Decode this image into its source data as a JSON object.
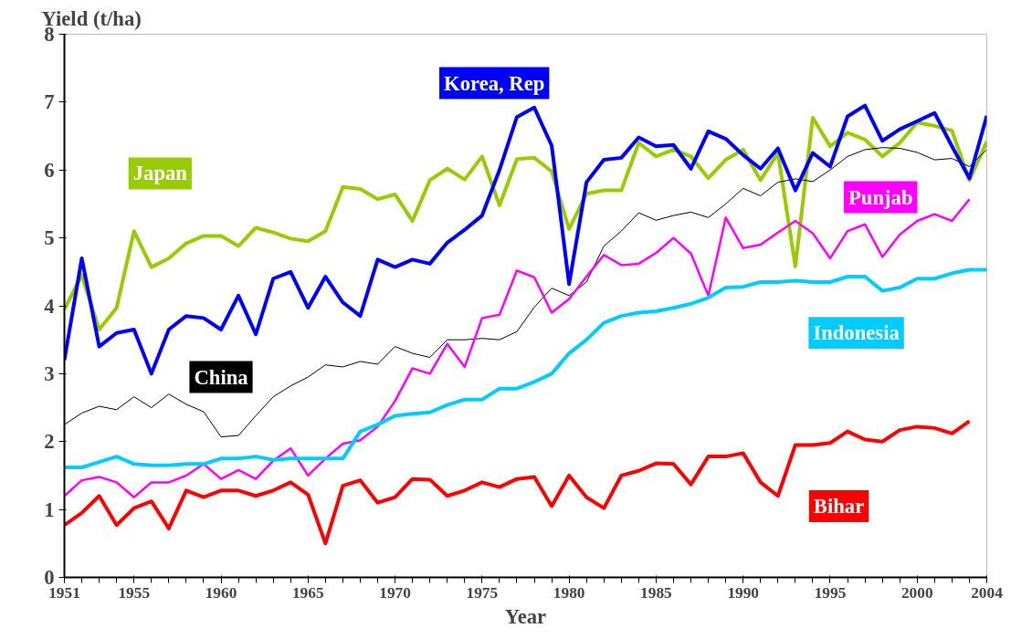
{
  "chart_data": {
    "type": "line",
    "xlabel": "Year",
    "ylabel": "Yield (t/ha)",
    "x": [
      1951,
      1952,
      1953,
      1954,
      1955,
      1956,
      1957,
      1958,
      1959,
      1960,
      1961,
      1962,
      1963,
      1964,
      1965,
      1966,
      1967,
      1968,
      1969,
      1970,
      1971,
      1972,
      1973,
      1974,
      1975,
      1976,
      1977,
      1978,
      1979,
      1980,
      1981,
      1982,
      1983,
      1984,
      1985,
      1986,
      1987,
      1988,
      1989,
      1990,
      1991,
      1992,
      1993,
      1994,
      1995,
      1996,
      1997,
      1998,
      1999,
      2000,
      2001,
      2002,
      2003,
      2004
    ],
    "series": [
      {
        "name": "Japan",
        "color": "#99cc00",
        "values": [
          3.95,
          4.45,
          3.65,
          3.97,
          5.1,
          4.57,
          4.7,
          4.92,
          5.03,
          5.03,
          4.88,
          5.15,
          5.08,
          4.99,
          4.95,
          5.1,
          5.75,
          5.72,
          5.57,
          5.64,
          5.25,
          5.85,
          6.02,
          5.86,
          6.2,
          5.48,
          6.16,
          6.18,
          5.98,
          5.13,
          5.65,
          5.7,
          5.7,
          6.4,
          6.2,
          6.3,
          6.2,
          5.88,
          6.15,
          6.3,
          5.85,
          6.25,
          4.58,
          6.77,
          6.35,
          6.55,
          6.45,
          6.2,
          6.4,
          6.7,
          6.65,
          6.58,
          5.85,
          6.42
        ]
      },
      {
        "name": "China",
        "color": "#000000",
        "values": [
          2.25,
          2.42,
          2.52,
          2.47,
          2.66,
          2.5,
          2.7,
          2.55,
          2.44,
          2.07,
          2.09,
          2.38,
          2.66,
          2.82,
          2.95,
          3.13,
          3.1,
          3.18,
          3.14,
          3.4,
          3.3,
          3.24,
          3.5,
          3.5,
          3.52,
          3.5,
          3.62,
          3.98,
          4.26,
          4.15,
          4.35,
          4.88,
          5.1,
          5.37,
          5.26,
          5.33,
          5.38,
          5.3,
          5.5,
          5.73,
          5.62,
          5.82,
          5.87,
          5.83,
          6.0,
          6.2,
          6.3,
          6.33,
          6.32,
          6.26,
          6.15,
          6.17,
          6.05,
          6.3
        ]
      },
      {
        "name": "Punjab",
        "color": "#ff00ff",
        "values": [
          1.2,
          1.43,
          1.48,
          1.4,
          1.18,
          1.4,
          1.4,
          1.5,
          1.67,
          1.45,
          1.58,
          1.45,
          1.72,
          1.9,
          1.5,
          1.75,
          1.97,
          2.02,
          2.22,
          2.6,
          3.08,
          3.0,
          3.44,
          3.1,
          3.82,
          3.87,
          4.52,
          4.42,
          3.9,
          4.1,
          4.43,
          4.75,
          4.6,
          4.62,
          4.78,
          5.0,
          4.77,
          4.15,
          5.3,
          4.85,
          4.9,
          5.08,
          5.25,
          5.07,
          4.7,
          5.1,
          5.2,
          4.72,
          5.05,
          5.25,
          5.35,
          5.25,
          5.57,
          null
        ]
      },
      {
        "name": "Indonesia",
        "color": "#00ccff",
        "values": [
          1.62,
          1.62,
          1.7,
          1.78,
          1.67,
          1.65,
          1.65,
          1.67,
          1.67,
          1.75,
          1.75,
          1.78,
          1.73,
          1.75,
          1.75,
          1.75,
          1.75,
          2.15,
          2.25,
          2.38,
          2.41,
          2.43,
          2.54,
          2.62,
          2.62,
          2.78,
          2.78,
          2.88,
          3.0,
          3.3,
          3.5,
          3.75,
          3.85,
          3.9,
          3.92,
          3.97,
          4.03,
          4.12,
          4.27,
          4.28,
          4.35,
          4.35,
          4.37,
          4.35,
          4.35,
          4.43,
          4.43,
          4.22,
          4.27,
          4.4,
          4.4,
          4.48,
          4.53,
          4.53
        ]
      },
      {
        "name": "Bihar",
        "color": "#ff0000",
        "values": [
          0.77,
          0.95,
          1.2,
          0.77,
          1.02,
          1.12,
          0.72,
          1.28,
          1.18,
          1.28,
          1.28,
          1.2,
          1.28,
          1.4,
          1.22,
          0.5,
          1.35,
          1.43,
          1.1,
          1.18,
          1.45,
          1.44,
          1.2,
          1.28,
          1.4,
          1.33,
          1.45,
          1.48,
          1.05,
          1.5,
          1.18,
          1.02,
          1.5,
          1.57,
          1.68,
          1.67,
          1.37,
          1.78,
          1.78,
          1.83,
          1.4,
          1.2,
          1.95,
          1.95,
          1.98,
          2.15,
          2.03,
          2.0,
          2.17,
          2.22,
          2.2,
          2.12,
          2.3,
          null
        ]
      },
      {
        "name": "Korea, Rep",
        "color": "#0000ff",
        "values": [
          3.2,
          4.7,
          3.4,
          3.6,
          3.65,
          3.0,
          3.65,
          3.85,
          3.82,
          3.65,
          4.15,
          3.58,
          4.4,
          4.5,
          3.97,
          4.43,
          4.05,
          3.85,
          4.68,
          4.57,
          4.68,
          4.62,
          4.93,
          5.12,
          5.33,
          6.0,
          6.78,
          6.92,
          6.36,
          4.32,
          5.82,
          6.15,
          6.18,
          6.48,
          6.35,
          6.37,
          6.02,
          6.57,
          6.46,
          6.22,
          6.02,
          6.32,
          5.7,
          6.25,
          6.05,
          6.79,
          6.95,
          6.43,
          6.6,
          6.72,
          6.84,
          6.35,
          5.88,
          6.8
        ]
      }
    ],
    "xlim": [
      1951,
      2004
    ],
    "xticks": [
      1951,
      1955,
      1960,
      1965,
      1970,
      1975,
      1980,
      1985,
      1990,
      1995,
      2000,
      2004
    ],
    "ylim": [
      0,
      8
    ],
    "yticks": [
      0,
      1,
      2,
      3,
      4,
      5,
      6,
      7,
      8
    ],
    "grid": false,
    "marker": "none",
    "line_style": "solid"
  }
}
